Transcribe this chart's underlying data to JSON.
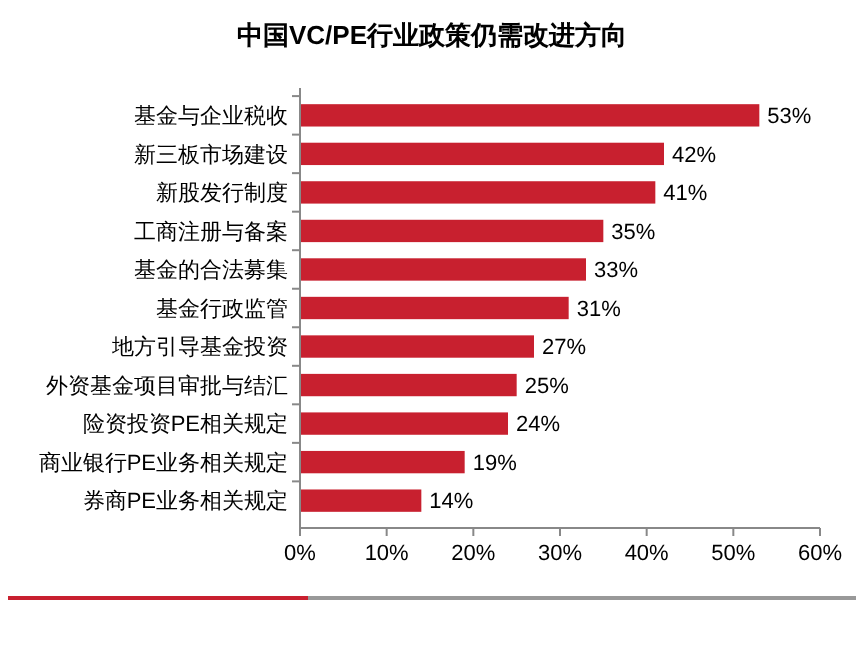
{
  "chart_data": {
    "type": "bar",
    "orientation": "horizontal",
    "title": "中国VC/PE行业政策仍需改进方向",
    "categories": [
      "基金与企业税收",
      "新三板市场建设",
      "新股发行制度",
      "工商注册与备案",
      "基金的合法募集",
      "基金行政监管",
      "地方引导基金投资",
      "外资基金项目审批与结汇",
      "险资投资PE相关规定",
      "商业银行PE业务相关规定",
      "券商PE业务相关规定"
    ],
    "values": [
      53,
      42,
      41,
      35,
      33,
      31,
      27,
      25,
      24,
      19,
      14
    ],
    "value_labels": [
      "53%",
      "42%",
      "41%",
      "35%",
      "33%",
      "31%",
      "27%",
      "25%",
      "24%",
      "19%",
      "14%"
    ],
    "color": "#c8202f",
    "xlim": [
      0,
      60
    ],
    "xticks": [
      {
        "value": 0,
        "label": "0%"
      },
      {
        "value": 10,
        "label": "10%"
      },
      {
        "value": 20,
        "label": "20%"
      },
      {
        "value": 30,
        "label": "30%"
      },
      {
        "value": 40,
        "label": "40%"
      },
      {
        "value": 50,
        "label": "50%"
      },
      {
        "value": 60,
        "label": "60%"
      }
    ],
    "grid": false
  }
}
